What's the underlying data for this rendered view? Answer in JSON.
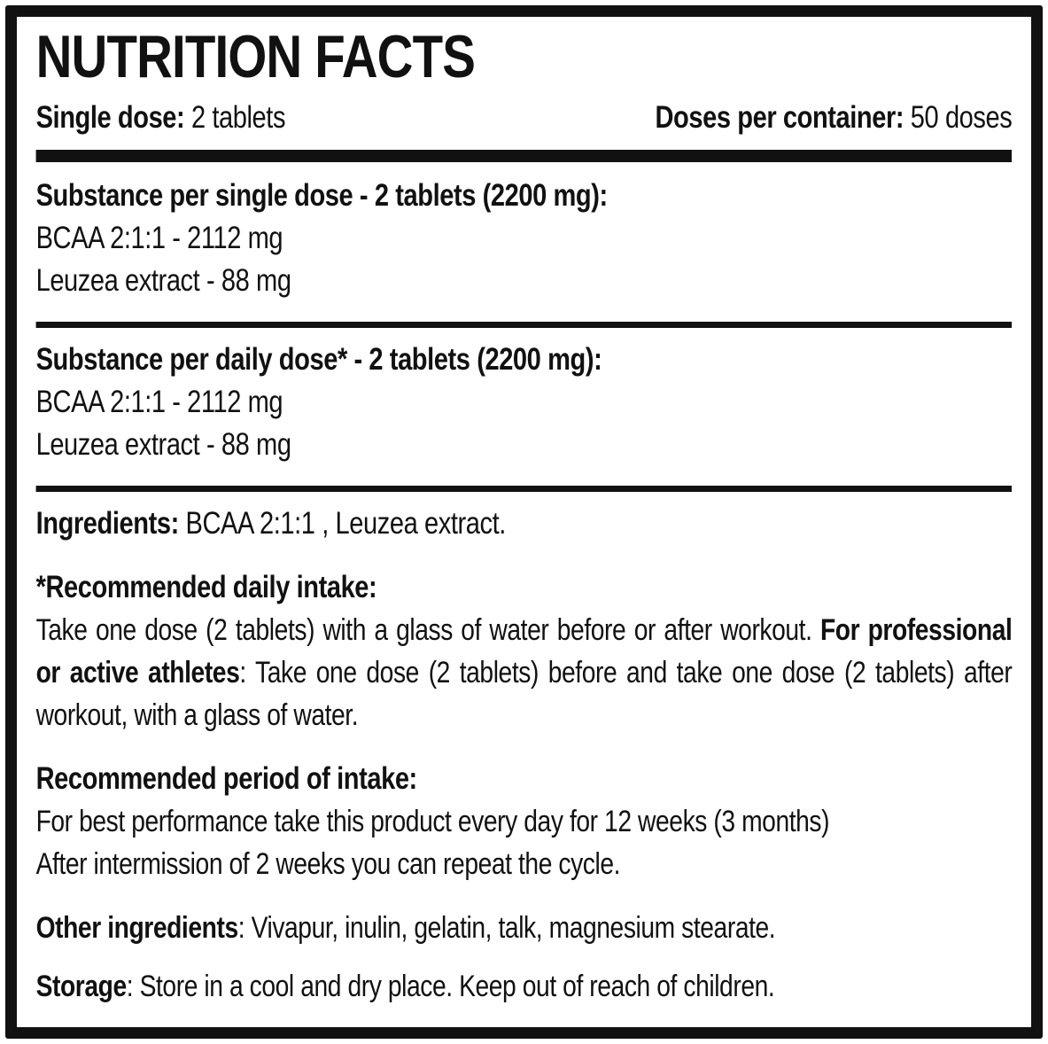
{
  "label": {
    "title": "NUTRITION FACTS",
    "single_dose": {
      "label": "Single dose:",
      "value": " 2 tablets"
    },
    "doses_per_container": {
      "label": "Doses per container:",
      "value": " 50 doses"
    },
    "sections": [
      {
        "heading": "Substance per single dose - 2 tablets (2200 mg):",
        "lines": [
          "BCAA 2:1:1 - 2112 mg",
          "Leuzea extract - 88 mg"
        ]
      },
      {
        "heading": "Substance per daily dose* - 2 tablets (2200 mg):",
        "lines": [
          "BCAA 2:1:1 - 2112 mg",
          "Leuzea extract - 88 mg"
        ]
      }
    ],
    "ingredients": {
      "label": "Ingredients:",
      "value": " BCAA 2:1:1 , Leuzea extract."
    },
    "daily_intake": {
      "heading": "*Recommended daily intake:",
      "text_1": "Take one dose (2 tablets) with a glass of water before or after workout. ",
      "bold": "For professional or active athletes",
      "text_2": ": Take one dose (2 tablets) before and take one dose (2 tablets) after workout, with a glass of water."
    },
    "period_of_intake": {
      "heading": "Recommended period of intake:",
      "text": "For best performance take this product every day for 12 weeks (3 months)\nAfter intermission of 2 weeks you can repeat the cycle."
    },
    "other_ingredients": {
      "label": "Other ingredients",
      "value": ": Vivapur, inulin, gelatin, talk, magnesium stearate."
    },
    "storage": {
      "label": "Storage",
      "value": ": Store in a cool and dry place. Keep out of reach of children."
    },
    "colors": {
      "ink": "#111111",
      "background": "#ffffff"
    }
  }
}
